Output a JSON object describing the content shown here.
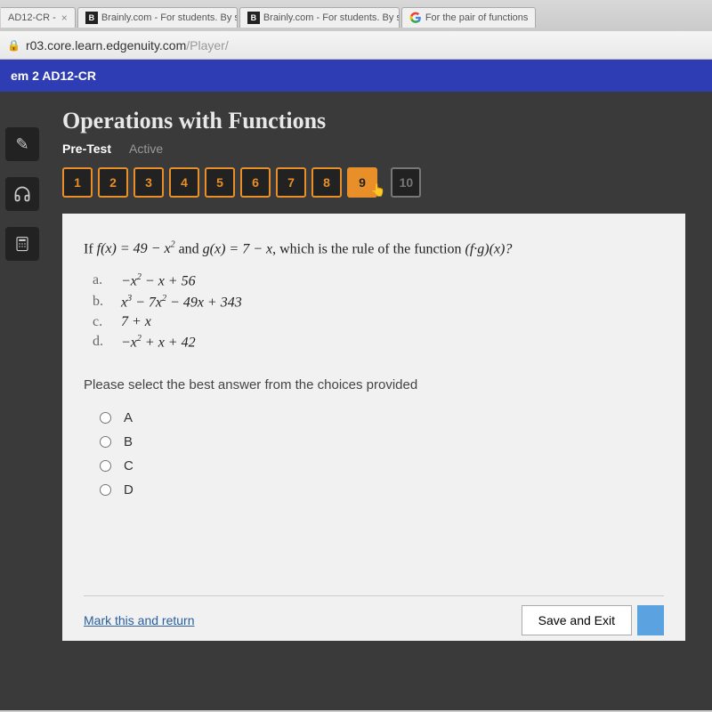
{
  "tabs": [
    {
      "icon": "",
      "label": "AD12-CR -",
      "close": true
    },
    {
      "icon": "B",
      "label": "Brainly.com - For students. By s",
      "close": true
    },
    {
      "icon": "B",
      "label": "Brainly.com - For students. By s",
      "close": true
    },
    {
      "icon": "G",
      "label": "For the pair of functions",
      "close": false
    }
  ],
  "url_host": "r03.core.learn.edgenuity.com",
  "url_path": "/Player/",
  "course_label": "em 2 AD12-CR",
  "lesson_title": "Operations with Functions",
  "subnav_pretest": "Pre-Test",
  "subnav_active": "Active",
  "questions": {
    "count": 10,
    "current": 9,
    "disabled": [
      10
    ]
  },
  "q_intro_1": "If ",
  "q_fx": "f(x) = 49 – x",
  "q_mid": " and ",
  "q_gx": "g(x) = 7 – x",
  "q_outro": ", which is the rule of the function ",
  "q_fg": "(f·g)(x)?",
  "choices": [
    {
      "letter": "a.",
      "expr": "−x² − x + 56"
    },
    {
      "letter": "b.",
      "expr": "x³ − 7x² − 49x + 343"
    },
    {
      "letter": "c.",
      "expr": "7 + x"
    },
    {
      "letter": "d.",
      "expr": "−x² + x + 42"
    }
  ],
  "select_prompt": "Please select the best answer from the choices provided",
  "answer_letters": [
    "A",
    "B",
    "C",
    "D"
  ],
  "mark_link": "Mark this and return",
  "save_exit": "Save and Exit"
}
